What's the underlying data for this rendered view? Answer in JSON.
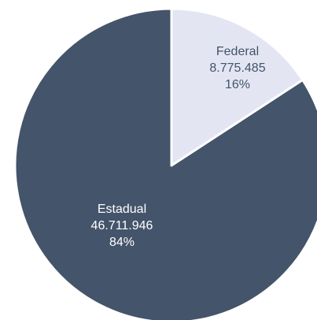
{
  "chart_data": {
    "type": "pie",
    "slices": [
      {
        "label": "Federal",
        "value_text": "8.775.485",
        "pct_text": "16%",
        "value": 8775485,
        "color": "#e3e6f2",
        "label_color": "#44546a"
      },
      {
        "label": "Estadual",
        "value_text": "46.711.946",
        "pct_text": "84%",
        "value": 46711946,
        "color": "#44546a",
        "label_color": "#ffffff"
      }
    ],
    "start_angle_deg": 0,
    "direction": "clockwise",
    "legend": "none"
  }
}
